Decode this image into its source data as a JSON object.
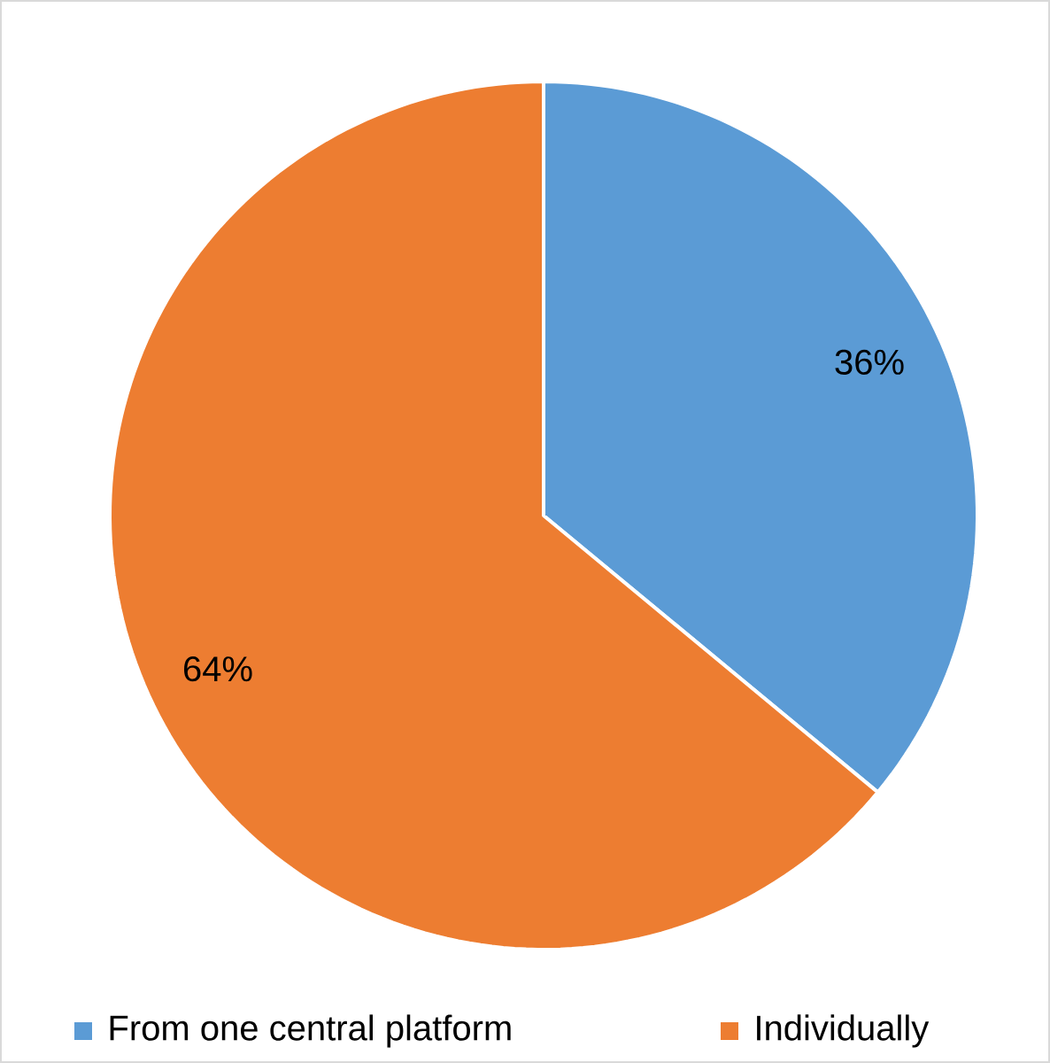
{
  "chart_data": {
    "type": "pie",
    "categories": [
      "From one central platform",
      "Individually"
    ],
    "values": [
      36,
      64
    ],
    "colors": [
      "#5b9bd5",
      "#ed7d31"
    ],
    "value_labels": [
      "36%",
      "64%"
    ],
    "legend": "bottom"
  }
}
